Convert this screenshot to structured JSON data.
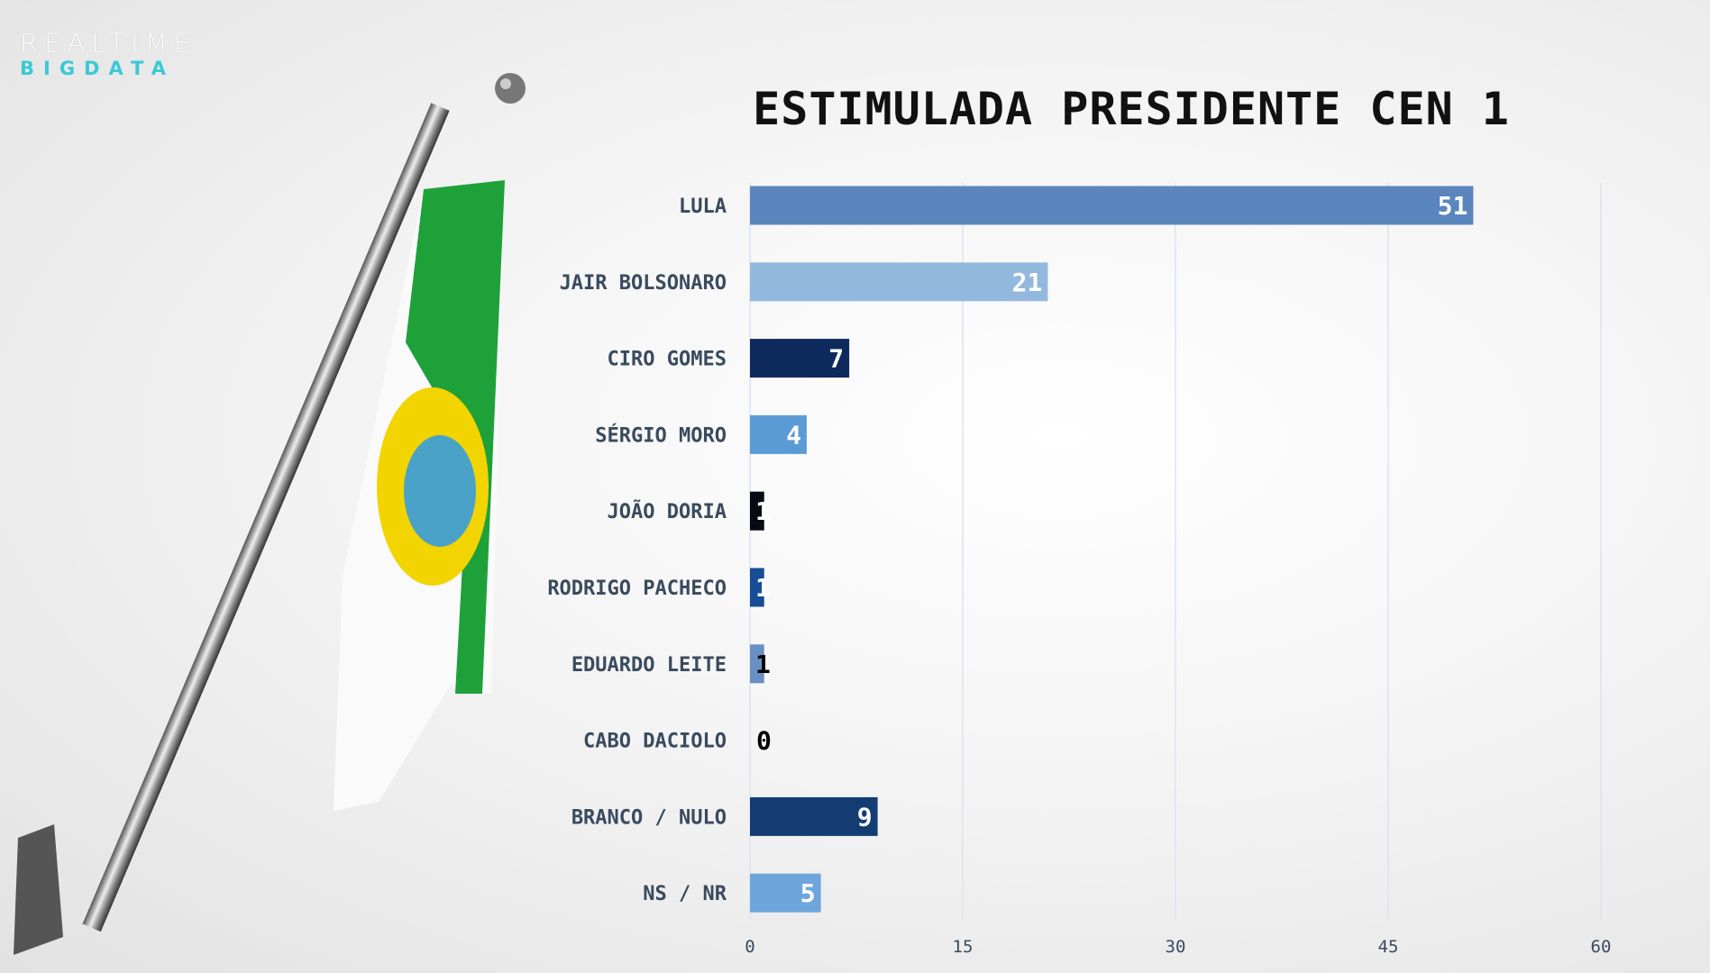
{
  "logo": {
    "line1": "REALTIME",
    "line2": "BIGDATA"
  },
  "chart_data": {
    "type": "bar",
    "orientation": "horizontal",
    "title": "ESTIMULADA PRESIDENTE CEN 1",
    "categories": [
      "LULA",
      "JAIR BOLSONARO",
      "CIRO GOMES",
      "SÉRGIO MORO",
      "JOÃO DORIA",
      "RODRIGO PACHECO",
      "EDUARDO LEITE",
      "CABO DACIOLO",
      "BRANCO / NULO",
      "NS / NR"
    ],
    "values": [
      51,
      21,
      7,
      4,
      1,
      1,
      1,
      0,
      9,
      5
    ],
    "colors": [
      "#5b86bd",
      "#93b8de",
      "#0e2a5c",
      "#5b9bd5",
      "#050a14",
      "#174d94",
      "#6a8fc5",
      "#6a8fc5",
      "#133d72",
      "#6ea6dc"
    ],
    "xlim": [
      0,
      60
    ],
    "xticks": [
      0,
      15,
      30,
      45,
      60
    ],
    "xlabel": "",
    "ylabel": "",
    "grid": true
  }
}
